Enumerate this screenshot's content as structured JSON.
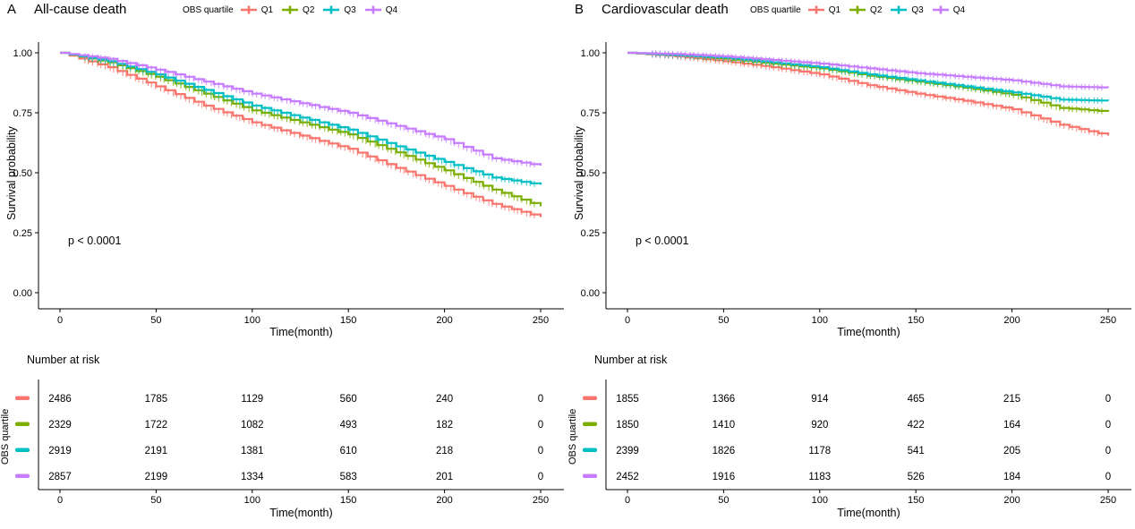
{
  "palette": {
    "q1": "#F8766D",
    "q2": "#7CAE00",
    "q3": "#00BFC4",
    "q4": "#C77CFF"
  },
  "chart_data": [
    {
      "type": "line",
      "subtype": "kaplan-meier-survival",
      "panel_letter": "A",
      "title": "All-cause death",
      "legend_title": "OBS quartile",
      "pvalue_text": "p < 0.0001",
      "xlabel": "Time(month)",
      "ylabel": "Survival probability",
      "xlim": [
        0,
        250
      ],
      "ylim": [
        0,
        1
      ],
      "x_ticks": [
        0,
        50,
        100,
        150,
        200,
        250
      ],
      "y_ticks": [
        0,
        0.25,
        0.5,
        0.75,
        1
      ],
      "y_tick_labels": [
        "0.00",
        "0.25",
        "0.50",
        "0.75",
        "1.00"
      ],
      "grid": false,
      "legend_position": "top",
      "x": [
        0,
        25,
        50,
        75,
        100,
        125,
        150,
        175,
        200,
        225,
        250
      ],
      "series": [
        {
          "name": "Q1",
          "color": "#F8766D",
          "values": [
            1.0,
            0.94,
            0.86,
            0.78,
            0.71,
            0.655,
            0.6,
            0.52,
            0.445,
            0.37,
            0.315
          ]
        },
        {
          "name": "Q2",
          "color": "#7CAE00",
          "values": [
            1.0,
            0.96,
            0.9,
            0.83,
            0.76,
            0.71,
            0.66,
            0.585,
            0.51,
            0.43,
            0.36
          ]
        },
        {
          "name": "Q3",
          "color": "#00BFC4",
          "values": [
            1.0,
            0.965,
            0.91,
            0.845,
            0.78,
            0.73,
            0.68,
            0.61,
            0.545,
            0.48,
            0.45
          ]
        },
        {
          "name": "Q4",
          "color": "#C77CFF",
          "values": [
            1.0,
            0.975,
            0.93,
            0.88,
            0.83,
            0.79,
            0.75,
            0.695,
            0.64,
            0.56,
            0.53
          ]
        }
      ],
      "risk_table": {
        "title": "Number at risk",
        "ylabel": "OBS quartile",
        "xlabel": "Time(month)",
        "x": [
          0,
          50,
          100,
          150,
          200,
          250
        ],
        "rows": [
          {
            "name": "Q1",
            "color": "#F8766D",
            "counts": [
              2486,
              1785,
              1129,
              560,
              240,
              0
            ]
          },
          {
            "name": "Q2",
            "color": "#7CAE00",
            "counts": [
              2329,
              1722,
              1082,
              493,
              182,
              0
            ]
          },
          {
            "name": "Q3",
            "color": "#00BFC4",
            "counts": [
              2919,
              2191,
              1381,
              610,
              218,
              0
            ]
          },
          {
            "name": "Q4",
            "color": "#C77CFF",
            "counts": [
              2857,
              2199,
              1334,
              583,
              201,
              0
            ]
          }
        ]
      }
    },
    {
      "type": "line",
      "subtype": "kaplan-meier-survival",
      "panel_letter": "B",
      "title": "Cardiovascular death",
      "legend_title": "OBS quartile",
      "pvalue_text": "p < 0.0001",
      "xlabel": "Time(month)",
      "ylabel": "Survival probability",
      "xlim": [
        0,
        250
      ],
      "ylim": [
        0,
        1
      ],
      "x_ticks": [
        0,
        50,
        100,
        150,
        200,
        250
      ],
      "y_ticks": [
        0,
        0.25,
        0.5,
        0.75,
        1
      ],
      "y_tick_labels": [
        "0.00",
        "0.25",
        "0.50",
        "0.75",
        "1.00"
      ],
      "grid": false,
      "legend_position": "top",
      "x": [
        0,
        25,
        50,
        75,
        100,
        125,
        150,
        175,
        200,
        225,
        250
      ],
      "series": [
        {
          "name": "Q1",
          "color": "#F8766D",
          "values": [
            1.0,
            0.985,
            0.965,
            0.94,
            0.91,
            0.865,
            0.83,
            0.8,
            0.765,
            0.7,
            0.655
          ]
        },
        {
          "name": "Q2",
          "color": "#7CAE00",
          "values": [
            1.0,
            0.99,
            0.975,
            0.955,
            0.935,
            0.905,
            0.88,
            0.855,
            0.825,
            0.77,
            0.755
          ]
        },
        {
          "name": "Q3",
          "color": "#00BFC4",
          "values": [
            1.0,
            0.99,
            0.98,
            0.96,
            0.94,
            0.91,
            0.885,
            0.86,
            0.835,
            0.805,
            0.8
          ]
        },
        {
          "name": "Q4",
          "color": "#C77CFF",
          "values": [
            1.0,
            0.995,
            0.985,
            0.97,
            0.955,
            0.935,
            0.915,
            0.9,
            0.885,
            0.86,
            0.855
          ]
        }
      ],
      "risk_table": {
        "title": "Number at risk",
        "ylabel": "OBS quartile",
        "xlabel": "Time(month)",
        "x": [
          0,
          50,
          100,
          150,
          200,
          250
        ],
        "rows": [
          {
            "name": "Q1",
            "color": "#F8766D",
            "counts": [
              1855,
              1366,
              914,
              465,
              215,
              0
            ]
          },
          {
            "name": "Q2",
            "color": "#7CAE00",
            "counts": [
              1850,
              1410,
              920,
              422,
              164,
              0
            ]
          },
          {
            "name": "Q3",
            "color": "#00BFC4",
            "counts": [
              2399,
              1826,
              1178,
              541,
              205,
              0
            ]
          },
          {
            "name": "Q4",
            "color": "#C77CFF",
            "counts": [
              2452,
              1916,
              1183,
              526,
              184,
              0
            ]
          }
        ]
      }
    }
  ]
}
